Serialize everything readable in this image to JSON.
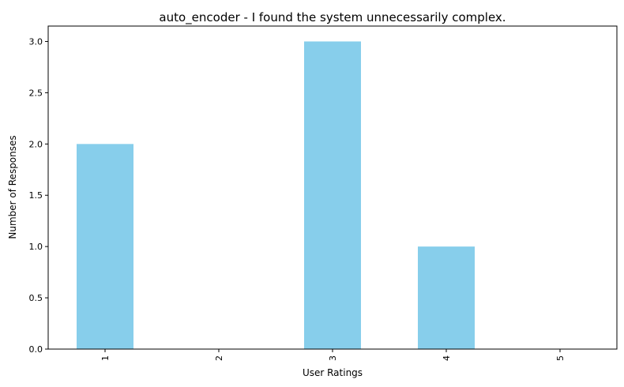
{
  "chart_data": {
    "type": "bar",
    "title": "auto_encoder - I found the system unnecessarily complex.",
    "xlabel": "User Ratings",
    "ylabel": "Number of Responses",
    "categories": [
      "1",
      "2",
      "3",
      "4",
      "5"
    ],
    "values": [
      2,
      0,
      3,
      1,
      0
    ],
    "ylim": [
      0,
      3.15
    ],
    "yticks": [
      "0.0",
      "0.5",
      "1.0",
      "1.5",
      "2.0",
      "2.5",
      "3.0"
    ],
    "grid": false,
    "legend": "none",
    "bar_color": "#87CEEB",
    "x_tick_rotation": "vertical"
  }
}
